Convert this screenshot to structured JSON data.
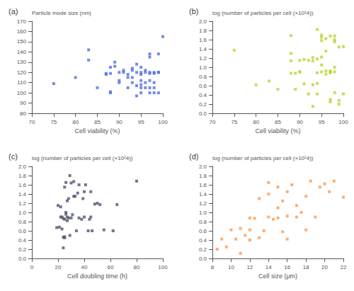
{
  "chart_data": [
    {
      "type": "scatter",
      "title": "(a)",
      "xlabel": "Cell viability (%)",
      "ylabel": "Particle mode size (nm)",
      "x": [
        75,
        83,
        80,
        83,
        85,
        87,
        87,
        88,
        88,
        88,
        88,
        89,
        89,
        90,
        90,
        90,
        91,
        91,
        92,
        92,
        92,
        93,
        93,
        93,
        93,
        94,
        94,
        94,
        94,
        95,
        95,
        95,
        95,
        95,
        95,
        95,
        96,
        96,
        96,
        96,
        97,
        97,
        97,
        97,
        97,
        97,
        97,
        98,
        98,
        98,
        98,
        98,
        99,
        99,
        99,
        99,
        100
      ],
      "values": [
        109,
        132,
        115,
        142,
        105,
        118,
        119,
        100,
        101,
        119,
        125,
        126,
        130,
        110,
        112,
        120,
        120,
        122,
        105,
        115,
        118,
        110,
        115,
        122,
        124,
        97,
        107,
        120,
        128,
        100,
        105,
        108,
        112,
        118,
        120,
        125,
        105,
        110,
        120,
        122,
        100,
        105,
        112,
        119,
        120,
        135,
        138,
        100,
        105,
        110,
        119,
        120,
        100,
        120,
        120,
        138,
        155
      ],
      "xlim": [
        70,
        100
      ],
      "ylim": [
        80,
        170
      ],
      "xticks": [
        70,
        75,
        80,
        85,
        90,
        95,
        100
      ],
      "yticks": [
        80,
        90,
        100,
        110,
        120,
        130,
        140,
        150,
        160,
        170
      ],
      "marker": "square",
      "grid": false
    },
    {
      "type": "scatter",
      "title": "(b)",
      "xlabel": "Cell viability (%)",
      "ylabel": "log (number of particles per cell (×10²4))",
      "x": [
        75,
        80,
        83,
        85,
        88,
        88,
        88,
        88,
        89,
        89,
        90,
        90,
        90,
        91,
        91,
        92,
        92,
        93,
        93,
        93,
        93,
        94,
        94,
        94,
        94,
        94,
        95,
        95,
        95,
        95,
        95,
        95,
        96,
        96,
        96,
        96,
        97,
        97,
        97,
        97,
        97,
        97,
        98,
        98,
        98,
        98,
        98,
        98,
        99,
        99,
        99,
        100,
        100
      ],
      "values": [
        1.37,
        0.62,
        0.7,
        0.52,
        0.87,
        1.14,
        1.3,
        1.69,
        0.52,
        0.87,
        0.9,
        0.9,
        1.15,
        0.64,
        1.17,
        0.42,
        1.15,
        0.15,
        0.62,
        1.14,
        1.21,
        0.42,
        0.65,
        0.88,
        1.18,
        1.82,
        0.9,
        1.05,
        1.22,
        1.58,
        1.65,
        1.7,
        0.85,
        0.92,
        1.35,
        1.62,
        0.25,
        0.3,
        0.88,
        0.9,
        0.92,
        1.68,
        0.45,
        0.9,
        1.0,
        1.55,
        1.6,
        1.68,
        0.2,
        0.28,
        1.44,
        0.42,
        1.45
      ],
      "xlim": [
        70,
        100
      ],
      "ylim": [
        0,
        2
      ],
      "xticks": [
        70,
        75,
        80,
        85,
        90,
        95,
        100
      ],
      "yticks": [
        {
          "value": 0,
          "label": "0.0"
        },
        0.2,
        0.4,
        0.6,
        0.8,
        {
          "value": 1.0,
          "label": "1.0"
        },
        1.2,
        1.4,
        1.6,
        1.8,
        {
          "value": 2.0,
          "label": "2.0"
        }
      ],
      "marker": "square",
      "grid": false
    },
    {
      "type": "scatter",
      "title": "(c)",
      "xlabel": "Cell doubling time (h)",
      "ylabel": "log (number of particles per cell (×10²4))",
      "x": [
        19,
        20,
        21,
        22,
        22,
        23,
        23,
        24,
        24,
        24,
        25,
        25,
        25,
        25,
        26,
        26,
        26,
        27,
        27,
        27,
        28,
        28,
        29,
        29,
        30,
        30,
        31,
        32,
        32,
        33,
        34,
        35,
        36,
        36,
        38,
        39,
        40,
        40,
        41,
        43,
        44,
        45,
        45,
        46,
        48,
        50,
        52,
        55,
        62,
        65,
        80
      ],
      "values": [
        0.67,
        1.15,
        0.68,
        0.9,
        1.12,
        0.64,
        0.9,
        0.23,
        0.46,
        0.87,
        0.45,
        0.47,
        0.85,
        1.55,
        0.96,
        1.0,
        1.65,
        0.82,
        0.9,
        1.25,
        0.88,
        1.3,
        0.5,
        1.8,
        0.88,
        1.64,
        0.95,
        1.67,
        1.35,
        1.35,
        0.6,
        1.42,
        0.88,
        1.6,
        0.85,
        1.3,
        0.9,
        1.45,
        1.6,
        0.6,
        0.85,
        0.9,
        1.45,
        0.6,
        1.18,
        1.2,
        1.17,
        0.62,
        0.6,
        1.17,
        1.68
      ],
      "xlim": [
        0,
        100
      ],
      "ylim": [
        0,
        2
      ],
      "xticks": [
        0,
        20,
        40,
        60,
        80,
        100
      ],
      "yticks": [
        {
          "value": 0,
          "label": "0.0"
        },
        0.2,
        0.4,
        0.6,
        0.8,
        {
          "value": 1.0,
          "label": "1.0"
        },
        1.2,
        1.4,
        1.6,
        1.8,
        {
          "value": 2.0,
          "label": "2.0"
        }
      ],
      "marker": "square",
      "grid": false
    },
    {
      "type": "scatter",
      "title": "(d)",
      "xlabel": "Cell size (μm)",
      "ylabel": "log (number of particles per cell (×10²4))",
      "x": [
        8.5,
        9,
        9.5,
        10,
        10.5,
        11,
        11,
        11.5,
        12,
        12,
        12,
        12.5,
        13,
        13,
        13.5,
        14,
        14,
        14,
        14.5,
        15,
        15,
        15,
        15.5,
        15.5,
        16,
        16,
        16,
        16.5,
        17,
        17,
        17.5,
        18,
        18,
        18.5,
        19,
        19.5,
        20,
        20.5,
        21,
        22
      ],
      "values": [
        0.2,
        0.42,
        0.25,
        0.62,
        0.42,
        0.11,
        0.65,
        0.5,
        0.4,
        0.62,
        0.88,
        0.87,
        0.45,
        1.3,
        0.6,
        0.9,
        1.4,
        1.65,
        0.85,
        0.88,
        1.1,
        1.55,
        0.58,
        1.25,
        0.42,
        0.92,
        1.45,
        1.6,
        0.9,
        1.15,
        1.0,
        0.62,
        1.35,
        1.68,
        0.9,
        1.55,
        1.62,
        1.45,
        1.68,
        1.33
      ],
      "xlim": [
        8,
        22
      ],
      "ylim": [
        0,
        2
      ],
      "xticks": [
        8,
        10,
        12,
        14,
        16,
        18,
        20,
        22
      ],
      "yticks": [
        {
          "value": 0,
          "label": "0.0"
        },
        0.2,
        0.4,
        0.6,
        0.8,
        {
          "value": 1.0,
          "label": "1.0"
        },
        1.2,
        1.4,
        1.6,
        1.8,
        {
          "value": 2.0,
          "label": "2.0"
        }
      ],
      "marker": "square",
      "grid": false
    }
  ]
}
